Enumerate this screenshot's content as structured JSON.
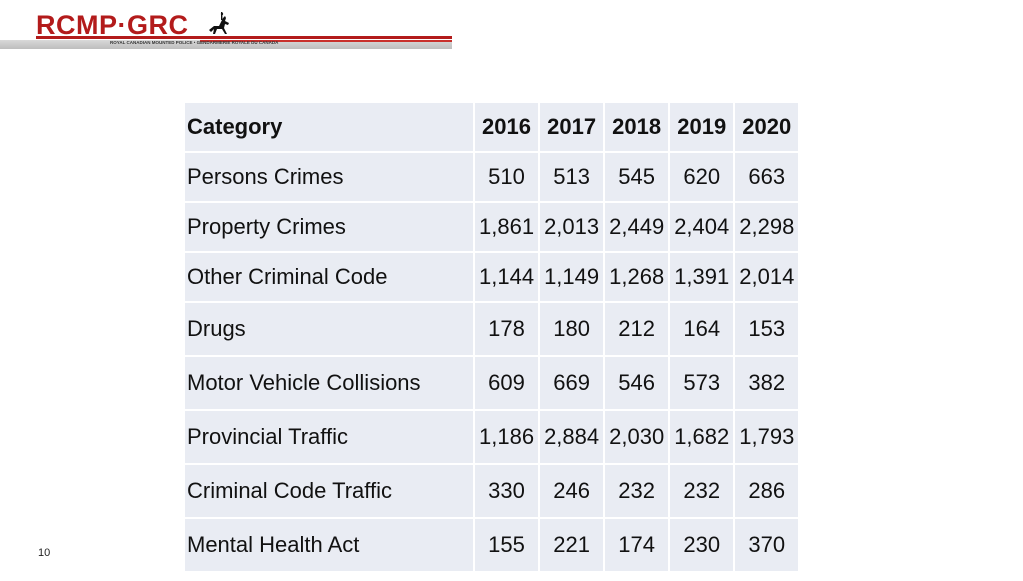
{
  "header": {
    "logo_text": "RCMP·GRC",
    "logo_subtext": "ROYAL CANADIAN MOUNTED POLICE • GENDARMERIE ROYALE DU CANADA"
  },
  "table": {
    "columns": [
      "Category",
      "2016",
      "2017",
      "2018",
      "2019",
      "2020"
    ],
    "rows": [
      {
        "category": "Persons Crimes",
        "values": [
          "510",
          "513",
          "545",
          "620",
          "663"
        ]
      },
      {
        "category": "Property Crimes",
        "values": [
          "1,861",
          "2,013",
          "2,449",
          "2,404",
          "2,298"
        ]
      },
      {
        "category": "Other Criminal Code",
        "values": [
          "1,144",
          "1,149",
          "1,268",
          "1,391",
          "2,014"
        ]
      },
      {
        "category": "Drugs",
        "values": [
          "178",
          "180",
          "212",
          "164",
          "153"
        ]
      },
      {
        "category": "Motor Vehicle Collisions",
        "values": [
          "609",
          "669",
          "546",
          "573",
          "382"
        ]
      },
      {
        "category": "Provincial Traffic",
        "values": [
          "1,186",
          "2,884",
          "2,030",
          "1,682",
          "1,793"
        ]
      },
      {
        "category": "Criminal Code Traffic",
        "values": [
          "330",
          "246",
          "232",
          "232",
          "286"
        ]
      },
      {
        "category": "Mental Health Act",
        "values": [
          "155",
          "221",
          "174",
          "230",
          "370"
        ]
      }
    ]
  },
  "footer": {
    "page_number": "10"
  },
  "colors": {
    "brand_red": "#b31b1b",
    "cell_bg": "#e9ecf3"
  }
}
